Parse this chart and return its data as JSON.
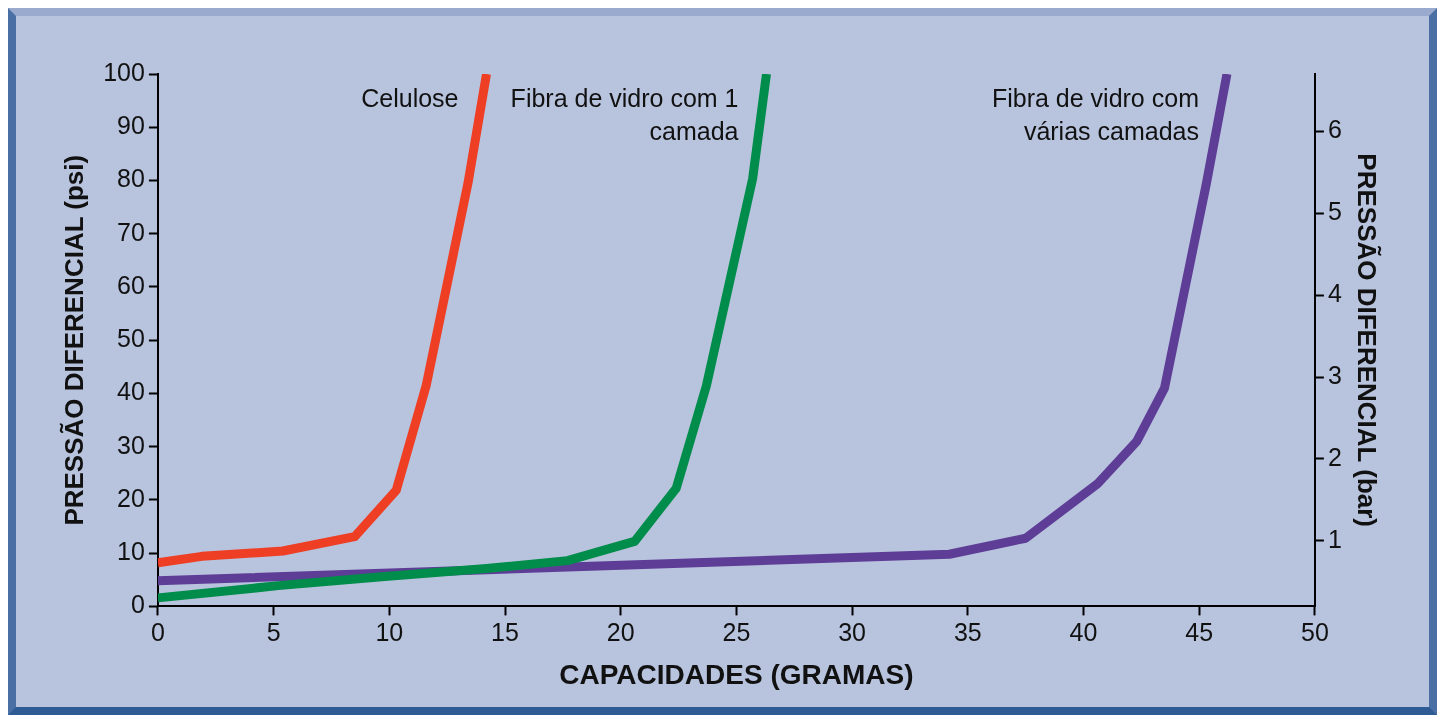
{
  "chart_data": {
    "type": "line",
    "xlabel": "CAPACIDADES (GRAMAS)",
    "ylabel": "PRESSÃO DIFERENCIAL (psi)",
    "y2label": "PRESSÃO DIFERENCIAL (bar)",
    "xlim": [
      0,
      50
    ],
    "xticks": [
      0,
      5,
      10,
      15,
      20,
      25,
      30,
      35,
      40,
      45,
      50
    ],
    "ylim": [
      0,
      100
    ],
    "yticks": [
      0,
      10,
      20,
      30,
      40,
      50,
      60,
      70,
      80,
      90,
      100
    ],
    "y2lim": [
      0.2,
      6.7
    ],
    "y2ticks": [
      1,
      2,
      3,
      4,
      5,
      6
    ],
    "grid": false,
    "legend": false,
    "marker": "none",
    "line_style": "solid",
    "series": [
      {
        "name": "Celulose",
        "color": "#ee3e23",
        "x": [
          0,
          1.9,
          5.4,
          8.5,
          10.3,
          11.6,
          13.4,
          14.2
        ],
        "values": [
          8.2,
          9.4,
          10.4,
          13.1,
          21.8,
          41.6,
          79.5,
          100
        ]
      },
      {
        "name": "Fibra de vidro com 1 camada",
        "color": "#008c4a",
        "x": [
          0,
          5.2,
          9.8,
          14.2,
          17.7,
          20.6,
          22.4,
          23.7,
          25.7,
          26.3
        ],
        "values": [
          1.6,
          3.9,
          5.6,
          7.1,
          8.6,
          12.2,
          22.2,
          41.4,
          80.3,
          100
        ]
      },
      {
        "name": "Fibra de vidro com várias camadas",
        "color": "#5e3d97",
        "x": [
          0,
          34.2,
          37.5,
          40.6,
          42.3,
          43.5,
          45.3,
          46.2
        ],
        "values": [
          4.8,
          9.8,
          12.8,
          23,
          31,
          41,
          79.2,
          100
        ]
      }
    ]
  }
}
